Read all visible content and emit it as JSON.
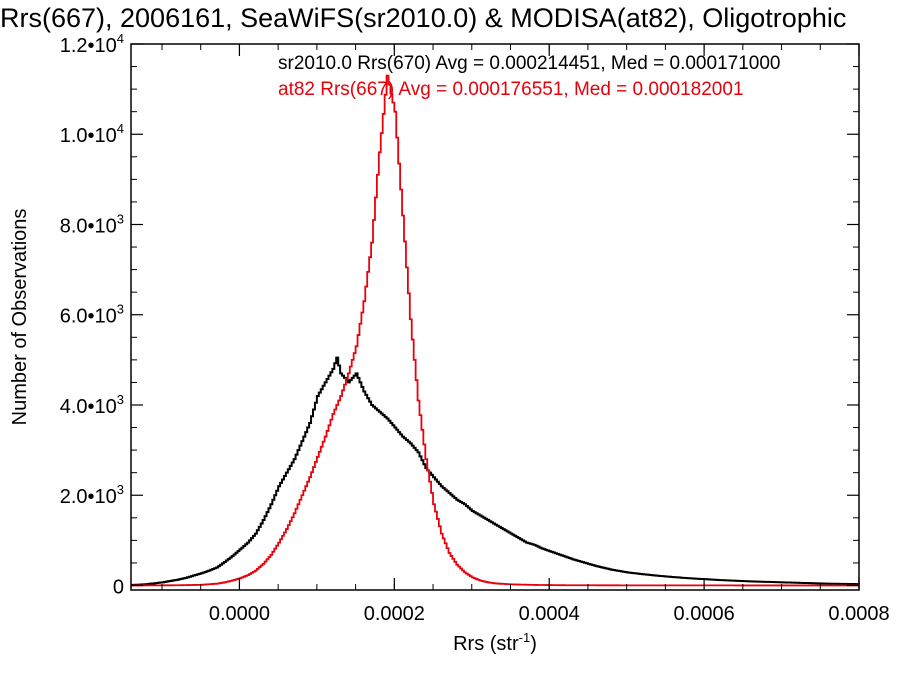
{
  "chart_data": {
    "type": "histogram",
    "title": "Rrs(667), 2006161, SeaWiFS(sr2010.0) & MODISA(at82), Oligotrophic",
    "xlabel": "Rrs (str",
    "xlabel_sup": "-1",
    "xlabel_close": ")",
    "ylabel": "Number of Observations",
    "xlim": [
      -0.00014,
      0.0008
    ],
    "ylim": [
      -100,
      12000
    ],
    "x_ticks": [
      0.0,
      0.0002,
      0.0004,
      0.0006,
      0.0008
    ],
    "x_tick_labels": [
      "0.0000",
      "0.0002",
      "0.0004",
      "0.0006",
      "0.0008"
    ],
    "y_ticks": [
      {
        "value": 0,
        "mantissa": "0",
        "exp": ""
      },
      {
        "value": 2000,
        "mantissa": "2.0•10",
        "exp": "3"
      },
      {
        "value": 4000,
        "mantissa": "4.0•10",
        "exp": "3"
      },
      {
        "value": 6000,
        "mantissa": "6.0•10",
        "exp": "3"
      },
      {
        "value": 8000,
        "mantissa": "8.0•10",
        "exp": "3"
      },
      {
        "value": 10000,
        "mantissa": "1.0•10",
        "exp": "4"
      },
      {
        "value": 12000,
        "mantissa": "1.2•10",
        "exp": "4"
      }
    ],
    "grid": false,
    "annotations": [
      {
        "text": "sr2010.0 Rrs(670) Avg = 0.000214451, Med = 0.000171000",
        "color": "#000000"
      },
      {
        "text": "at82 Rrs(667) Avg = 0.000176551, Med = 0.000182001",
        "color": "#e8000b"
      }
    ],
    "series": [
      {
        "color": "#000000",
        "points": [
          [
            -0.00014,
            10
          ],
          [
            -0.00013,
            20
          ],
          [
            -0.00012,
            30
          ],
          [
            -0.00011,
            50
          ],
          [
            -0.0001,
            70
          ],
          [
            -9e-05,
            100
          ],
          [
            -8e-05,
            130
          ],
          [
            -7e-05,
            170
          ],
          [
            -6e-05,
            220
          ],
          [
            -5e-05,
            270
          ],
          [
            -4e-05,
            330
          ],
          [
            -3e-05,
            400
          ],
          [
            -2e-05,
            520
          ],
          [
            -1e-05,
            650
          ],
          [
            0.0,
            800
          ],
          [
            1e-05,
            950
          ],
          [
            2e-05,
            1150
          ],
          [
            3e-05,
            1450
          ],
          [
            4e-05,
            1800
          ],
          [
            5e-05,
            2200
          ],
          [
            6e-05,
            2500
          ],
          [
            7e-05,
            2800
          ],
          [
            8e-05,
            3200
          ],
          [
            9e-05,
            3600
          ],
          [
            0.0001,
            4200
          ],
          [
            0.00011,
            4500
          ],
          [
            0.00012,
            4800
          ],
          [
            0.000125,
            5050
          ],
          [
            0.00013,
            4700
          ],
          [
            0.00014,
            4500
          ],
          [
            0.00015,
            4700
          ],
          [
            0.00016,
            4300
          ],
          [
            0.00017,
            4000
          ],
          [
            0.00018,
            3850
          ],
          [
            0.00019,
            3700
          ],
          [
            0.0002,
            3500
          ],
          [
            0.00021,
            3300
          ],
          [
            0.00022,
            3150
          ],
          [
            0.00023,
            2950
          ],
          [
            0.00024,
            2600
          ],
          [
            0.00025,
            2400
          ],
          [
            0.00026,
            2200
          ],
          [
            0.00027,
            2050
          ],
          [
            0.00028,
            1900
          ],
          [
            0.00029,
            1800
          ],
          [
            0.0003,
            1650
          ],
          [
            0.00031,
            1550
          ],
          [
            0.00032,
            1450
          ],
          [
            0.00033,
            1350
          ],
          [
            0.00034,
            1250
          ],
          [
            0.00035,
            1150
          ],
          [
            0.00036,
            1050
          ],
          [
            0.00037,
            950
          ],
          [
            0.00038,
            900
          ],
          [
            0.00039,
            820
          ],
          [
            0.0004,
            760
          ],
          [
            0.00041,
            700
          ],
          [
            0.00042,
            640
          ],
          [
            0.00043,
            580
          ],
          [
            0.00044,
            530
          ],
          [
            0.00045,
            480
          ],
          [
            0.00046,
            430
          ],
          [
            0.00047,
            390
          ],
          [
            0.00048,
            350
          ],
          [
            0.00049,
            320
          ],
          [
            0.0005,
            290
          ],
          [
            0.00052,
            250
          ],
          [
            0.00054,
            215
          ],
          [
            0.00056,
            185
          ],
          [
            0.00058,
            160
          ],
          [
            0.0006,
            140
          ],
          [
            0.00062,
            120
          ],
          [
            0.00064,
            105
          ],
          [
            0.00066,
            90
          ],
          [
            0.00068,
            80
          ],
          [
            0.0007,
            70
          ],
          [
            0.00072,
            60
          ],
          [
            0.00074,
            50
          ],
          [
            0.00076,
            40
          ],
          [
            0.00078,
            35
          ],
          [
            0.0008,
            30
          ]
        ]
      },
      {
        "color": "#e8000b",
        "points": [
          [
            -0.00014,
            0
          ],
          [
            -8e-05,
            5
          ],
          [
            -5e-05,
            15
          ],
          [
            -3e-05,
            40
          ],
          [
            -2e-05,
            70
          ],
          [
            -1e-05,
            110
          ],
          [
            0.0,
            160
          ],
          [
            1e-05,
            230
          ],
          [
            2e-05,
            330
          ],
          [
            3e-05,
            480
          ],
          [
            4e-05,
            680
          ],
          [
            5e-05,
            950
          ],
          [
            6e-05,
            1250
          ],
          [
            7e-05,
            1600
          ],
          [
            8e-05,
            2000
          ],
          [
            9e-05,
            2400
          ],
          [
            0.0001,
            2850
          ],
          [
            0.00011,
            3300
          ],
          [
            0.00012,
            3800
          ],
          [
            0.00013,
            4200
          ],
          [
            0.00014,
            4700
          ],
          [
            0.00015,
            5300
          ],
          [
            0.00016,
            6300
          ],
          [
            0.00017,
            7600
          ],
          [
            0.00018,
            9600
          ],
          [
            0.00019,
            11300
          ],
          [
            0.0002,
            10500
          ],
          [
            0.00021,
            8200
          ],
          [
            0.00022,
            5900
          ],
          [
            0.00023,
            4100
          ],
          [
            0.00024,
            2800
          ],
          [
            0.00025,
            1800
          ],
          [
            0.00026,
            1150
          ],
          [
            0.00027,
            720
          ],
          [
            0.00028,
            460
          ],
          [
            0.00029,
            290
          ],
          [
            0.0003,
            180
          ],
          [
            0.00031,
            110
          ],
          [
            0.00032,
            70
          ],
          [
            0.00033,
            45
          ],
          [
            0.00035,
            25
          ],
          [
            0.00038,
            12
          ],
          [
            0.00042,
            6
          ],
          [
            0.0005,
            3
          ],
          [
            0.0008,
            0
          ]
        ]
      }
    ]
  }
}
